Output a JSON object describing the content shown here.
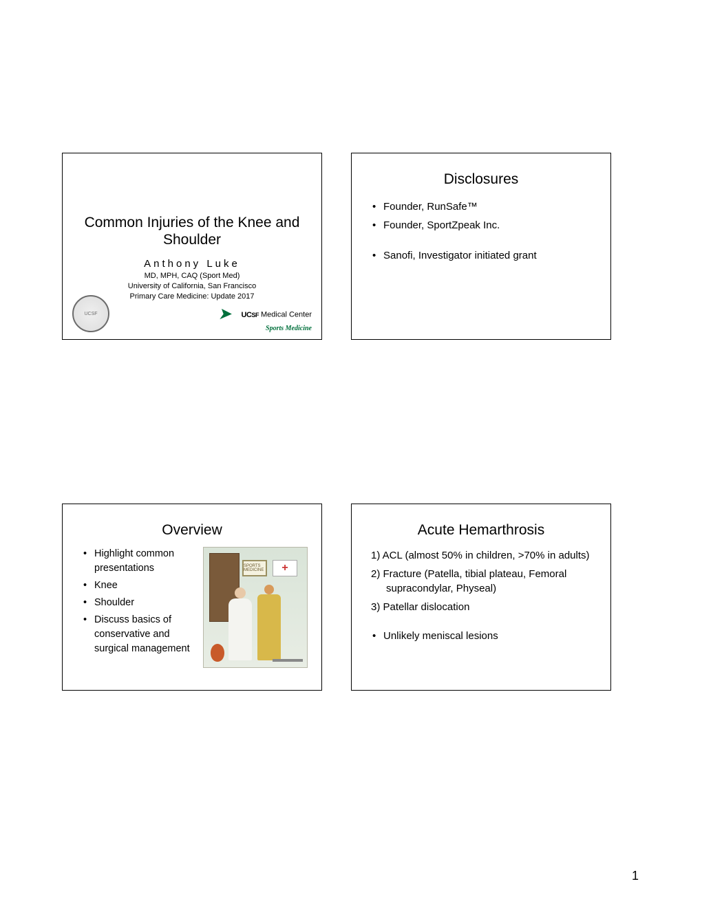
{
  "page_number": "1",
  "slides": {
    "s1": {
      "title": "Common Injuries of the Knee and Shoulder",
      "author": "Anthony Luke",
      "cred1": "MD, MPH, CAQ (Sport Med)",
      "cred2": "University of California, San Francisco",
      "cred3": "Primary Care Medicine: Update 2017",
      "ucsf_label": "Medical Center",
      "ucsf_sub": "Sports Medicine"
    },
    "s2": {
      "title": "Disclosures",
      "b1": "Founder, RunSafe™",
      "b2": "Founder, SportZpeak Inc.",
      "b3": "Sanofi, Investigator initiated grant"
    },
    "s3": {
      "title": "Overview",
      "b1": "Highlight common presentations",
      "b2": "Knee",
      "b3": "Shoulder",
      "b4": "Discuss basics of conservative and surgical management",
      "sign_text": "SPORTS MEDICINE"
    },
    "s4": {
      "title": "Acute Hemarthrosis",
      "n1": "1)  ACL (almost 50% in children, >70% in adults)",
      "n2": "2)  Fracture (Patella, tibial plateau, Femoral supracondylar, Physeal)",
      "n3": "3)  Patellar dislocation",
      "b1": "Unlikely meniscal lesions"
    }
  }
}
